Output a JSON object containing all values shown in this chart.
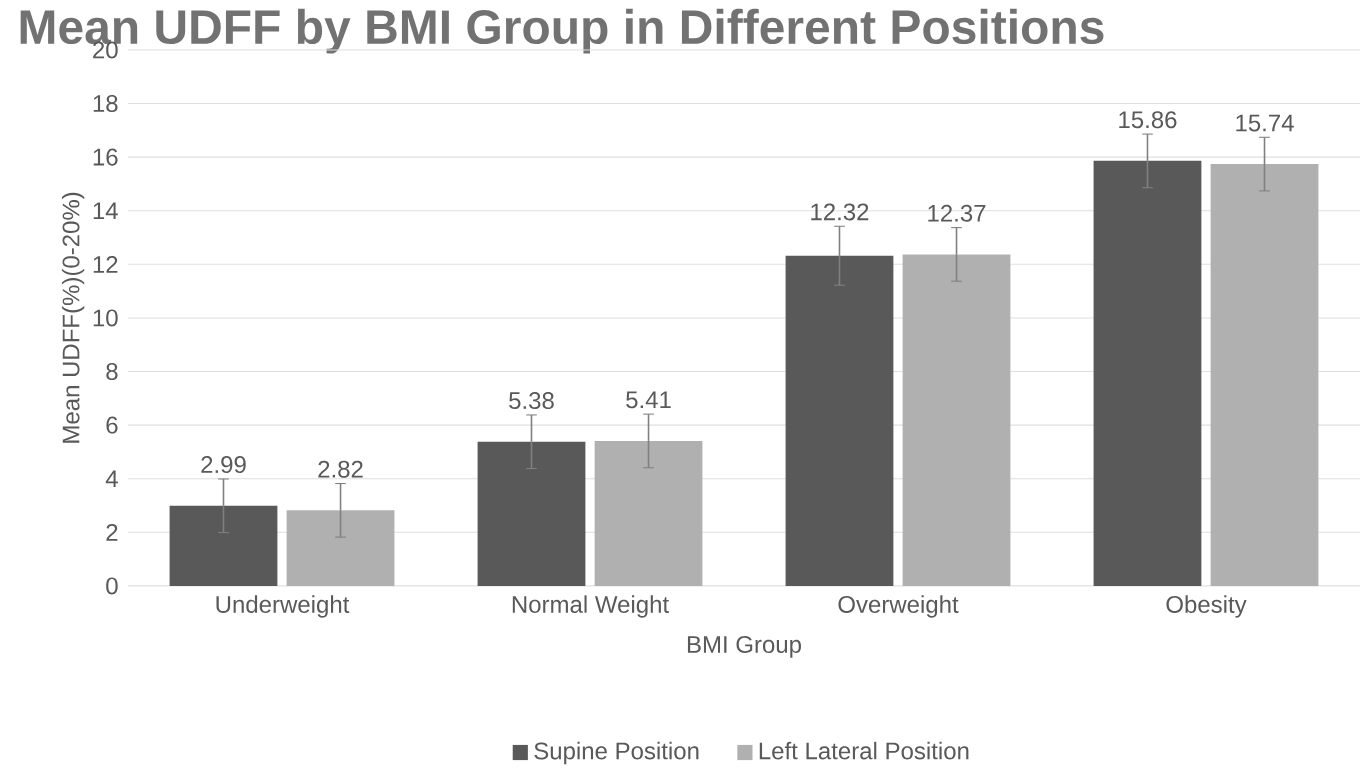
{
  "chart_data": {
    "type": "bar",
    "title": "Mean UDFF by BMI Group in Different Positions",
    "xlabel": "BMI Group",
    "ylabel": "Mean UDFF(%)(0-20%)",
    "categories": [
      "Underweight",
      "Normal Weight",
      "Overweight",
      "Obesity"
    ],
    "series": [
      {
        "name": "Supine Position",
        "color": "#595959",
        "values": [
          2.99,
          5.38,
          12.32,
          15.86
        ],
        "errors": [
          1,
          1,
          1.1,
          1
        ]
      },
      {
        "name": "Left Lateral Position",
        "color": "#b0b0b0",
        "values": [
          2.82,
          5.41,
          12.37,
          15.74
        ],
        "errors": [
          1,
          1,
          1,
          1
        ]
      }
    ],
    "ylim": [
      0,
      20
    ],
    "yticks": [
      0,
      2,
      4,
      6,
      8,
      10,
      12,
      14,
      16,
      18,
      20
    ],
    "grid": "y",
    "legend": "bottom",
    "data_labels": true
  }
}
